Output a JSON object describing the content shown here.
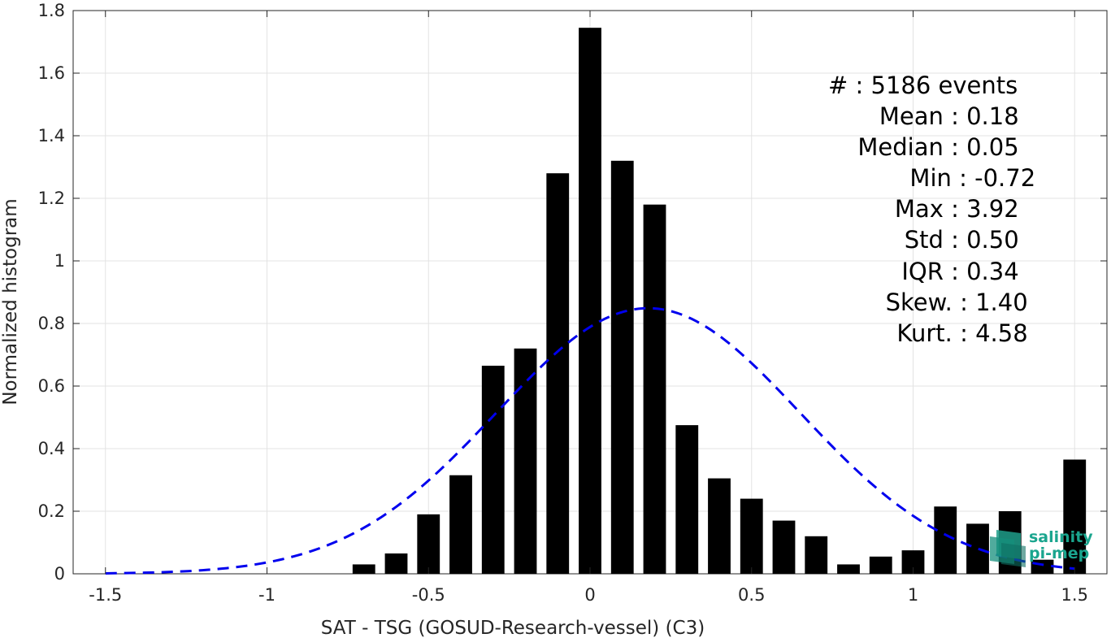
{
  "chart_data": {
    "type": "bar",
    "xlabel": "SAT - TSG (GOSUD-Research-vessel) (C3)",
    "ylabel": "Normalized histogram",
    "xlim": [
      -1.6,
      1.6
    ],
    "ylim": [
      0,
      1.8
    ],
    "xticks": [
      -1.5,
      -1,
      -0.5,
      0,
      0.5,
      1,
      1.5
    ],
    "xtick_labels": [
      "-1.5",
      "-1",
      "-0.5",
      "0",
      "0.5",
      "1",
      "1.5"
    ],
    "yticks": [
      0,
      0.2,
      0.4,
      0.6,
      0.8,
      1,
      1.2,
      1.4,
      1.6,
      1.8
    ],
    "ytick_labels": [
      "0",
      "0.2",
      "0.4",
      "0.6",
      "0.8",
      "1",
      "1.2",
      "1.4",
      "1.6",
      "1.8"
    ],
    "grid": true,
    "bar_color": "#000000",
    "bar_width": 0.07,
    "bars": {
      "x": [
        -0.7,
        -0.6,
        -0.5,
        -0.4,
        -0.3,
        -0.2,
        -0.1,
        0.0,
        0.1,
        0.2,
        0.3,
        0.4,
        0.5,
        0.6,
        0.7,
        0.8,
        0.9,
        1.0,
        1.1,
        1.2,
        1.3,
        1.4,
        1.5
      ],
      "values": [
        0.03,
        0.065,
        0.19,
        0.315,
        0.665,
        0.72,
        1.28,
        1.745,
        1.32,
        1.18,
        0.475,
        0.305,
        0.24,
        0.17,
        0.12,
        0.03,
        0.055,
        0.075,
        0.215,
        0.16,
        0.2,
        0.045,
        0.365
      ]
    },
    "fit_curve": {
      "type": "normal",
      "mean": 0.18,
      "std": 0.47,
      "x_range": [
        -1.5,
        1.5
      ],
      "color": "#0000ee",
      "style": "dashed"
    },
    "stats": [
      {
        "label": "#  ",
        "value": "5186 events"
      },
      {
        "label": "Mean",
        "value": "0.18"
      },
      {
        "label": "Median",
        "value": "0.05"
      },
      {
        "label": "Min",
        "value": "-0.72"
      },
      {
        "label": "Max",
        "value": "3.92"
      },
      {
        "label": "Std",
        "value": "0.50"
      },
      {
        "label": "IQR",
        "value": "0.34"
      },
      {
        "label": "Skew.",
        "value": "1.40"
      },
      {
        "label": "Kurt.",
        "value": "4.58"
      }
    ]
  },
  "logo": {
    "line1": "salinity",
    "line2": "pi-mep",
    "color": "#1aa58e"
  }
}
